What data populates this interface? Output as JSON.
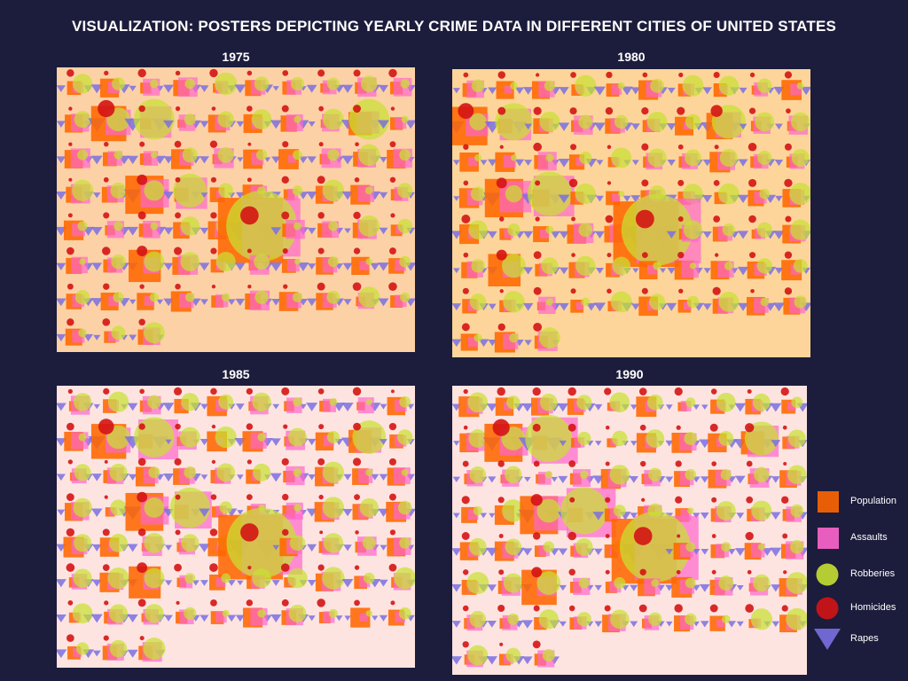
{
  "title": "VISUALIZATION: POSTERS DEPICTING YEARLY CRIME DATA IN DIFFERENT CITIES OF UNITED STATES",
  "colors": {
    "page_background": "#1c1c3c",
    "population": "#ff6600",
    "assaults": "#ff66cc",
    "robberies": "#c8e032",
    "homicides": "#d41414",
    "rapes": "#7a70e0"
  },
  "legend": [
    {
      "key": "population",
      "label": "Population",
      "shape": "square"
    },
    {
      "key": "assaults",
      "label": "Assaults",
      "shape": "square"
    },
    {
      "key": "robberies",
      "label": "Robberies",
      "shape": "circle"
    },
    {
      "key": "homicides",
      "label": "Homicides",
      "shape": "circle"
    },
    {
      "key": "rapes",
      "label": "Rapes",
      "shape": "triangle"
    }
  ],
  "chart_data": [
    {
      "type": "glyph-grid",
      "year": "1975",
      "poster_color": "#fdd1a6",
      "grid": {
        "rows": 8,
        "cols": 10,
        "cities_shown": 73
      },
      "highlight_cities": [
        {
          "row": 1,
          "col": 1,
          "population": 0.5,
          "assaults": 0.35,
          "robberies": 0.3,
          "homicides": 0.55,
          "rapes": 0.5
        },
        {
          "row": 1,
          "col": 2,
          "population": 0.1,
          "assaults": 0.45,
          "robberies": 0.55,
          "homicides": 0.15,
          "rapes": 0.45
        },
        {
          "row": 1,
          "col": 8,
          "population": 0.3,
          "assaults": 0.3,
          "robberies": 0.55,
          "homicides": 0.2,
          "rapes": 0.3
        },
        {
          "row": 3,
          "col": 2,
          "population": 0.55,
          "assaults": 0.4,
          "robberies": 0.25,
          "homicides": 0.3,
          "rapes": 0.5
        },
        {
          "row": 3,
          "col": 3,
          "population": 0.15,
          "assaults": 0.45,
          "robberies": 0.45,
          "homicides": 0.1,
          "rapes": 0.2
        },
        {
          "row": 4,
          "col": 5,
          "population": 1.0,
          "assaults": 0.9,
          "robberies": 1.0,
          "homicides": 0.6,
          "rapes": 0.8
        },
        {
          "row": 5,
          "col": 2,
          "population": 0.45,
          "assaults": 0.2,
          "robberies": 0.25,
          "homicides": 0.3,
          "rapes": 0.2
        }
      ]
    },
    {
      "type": "glyph-grid",
      "year": "1980",
      "poster_color": "#fdd59a",
      "grid": {
        "rows": 8,
        "cols": 10,
        "cities_shown": 73
      },
      "highlight_cities": [
        {
          "row": 1,
          "col": 0,
          "population": 0.55,
          "assaults": 0.3,
          "robberies": 0.2,
          "homicides": 0.5,
          "rapes": 0.4
        },
        {
          "row": 1,
          "col": 1,
          "population": 0.15,
          "assaults": 0.45,
          "robberies": 0.5,
          "homicides": 0.2,
          "rapes": 0.4
        },
        {
          "row": 1,
          "col": 7,
          "population": 0.35,
          "assaults": 0.35,
          "robberies": 0.45,
          "homicides": 0.35,
          "rapes": 0.3
        },
        {
          "row": 3,
          "col": 1,
          "population": 0.55,
          "assaults": 0.45,
          "robberies": 0.2,
          "homicides": 0.3,
          "rapes": 0.5
        },
        {
          "row": 3,
          "col": 2,
          "population": 0.2,
          "assaults": 0.6,
          "robberies": 0.6,
          "homicides": 0.1,
          "rapes": 0.3
        },
        {
          "row": 4,
          "col": 5,
          "population": 1.0,
          "assaults": 1.0,
          "robberies": 1.0,
          "homicides": 0.6,
          "rapes": 0.8
        },
        {
          "row": 5,
          "col": 1,
          "population": 0.45,
          "assaults": 0.2,
          "robberies": 0.3,
          "homicides": 0.3,
          "rapes": 0.2
        }
      ]
    },
    {
      "type": "glyph-grid",
      "year": "1985",
      "poster_color": "#fde4e0",
      "grid": {
        "rows": 8,
        "cols": 10,
        "cities_shown": 73
      },
      "highlight_cities": [
        {
          "row": 1,
          "col": 1,
          "population": 0.5,
          "assaults": 0.35,
          "robberies": 0.3,
          "homicides": 0.5,
          "rapes": 0.5
        },
        {
          "row": 1,
          "col": 2,
          "population": 0.15,
          "assaults": 0.6,
          "robberies": 0.55,
          "homicides": 0.15,
          "rapes": 0.45
        },
        {
          "row": 1,
          "col": 8,
          "population": 0.3,
          "assaults": 0.35,
          "robberies": 0.45,
          "homicides": 0.2,
          "rapes": 0.3
        },
        {
          "row": 3,
          "col": 2,
          "population": 0.55,
          "assaults": 0.4,
          "robberies": 0.25,
          "homicides": 0.3,
          "rapes": 0.5
        },
        {
          "row": 3,
          "col": 3,
          "population": 0.15,
          "assaults": 0.55,
          "robberies": 0.55,
          "homicides": 0.1,
          "rapes": 0.2
        },
        {
          "row": 4,
          "col": 5,
          "population": 1.0,
          "assaults": 0.95,
          "robberies": 1.0,
          "homicides": 0.6,
          "rapes": 0.8
        },
        {
          "row": 5,
          "col": 2,
          "population": 0.45,
          "assaults": 0.2,
          "robberies": 0.25,
          "homicides": 0.3,
          "rapes": 0.2
        }
      ]
    },
    {
      "type": "glyph-grid",
      "year": "1990",
      "poster_color": "#fde4e0",
      "grid": {
        "rows": 8,
        "cols": 10,
        "cities_shown": 73
      },
      "highlight_cities": [
        {
          "row": 1,
          "col": 1,
          "population": 0.55,
          "assaults": 0.4,
          "robberies": 0.3,
          "homicides": 0.55,
          "rapes": 0.5
        },
        {
          "row": 1,
          "col": 2,
          "population": 0.15,
          "assaults": 0.7,
          "robberies": 0.65,
          "homicides": 0.2,
          "rapes": 0.5
        },
        {
          "row": 1,
          "col": 8,
          "population": 0.3,
          "assaults": 0.45,
          "robberies": 0.45,
          "homicides": 0.25,
          "rapes": 0.3
        },
        {
          "row": 3,
          "col": 2,
          "population": 0.55,
          "assaults": 0.5,
          "robberies": 0.3,
          "homicides": 0.35,
          "rapes": 0.5
        },
        {
          "row": 3,
          "col": 3,
          "population": 0.15,
          "assaults": 0.75,
          "robberies": 0.65,
          "homicides": 0.1,
          "rapes": 0.2
        },
        {
          "row": 4,
          "col": 5,
          "population": 1.0,
          "assaults": 1.0,
          "robberies": 1.0,
          "homicides": 0.6,
          "rapes": 0.8
        },
        {
          "row": 5,
          "col": 2,
          "population": 0.5,
          "assaults": 0.25,
          "robberies": 0.3,
          "homicides": 0.3,
          "rapes": 0.2
        }
      ]
    }
  ]
}
